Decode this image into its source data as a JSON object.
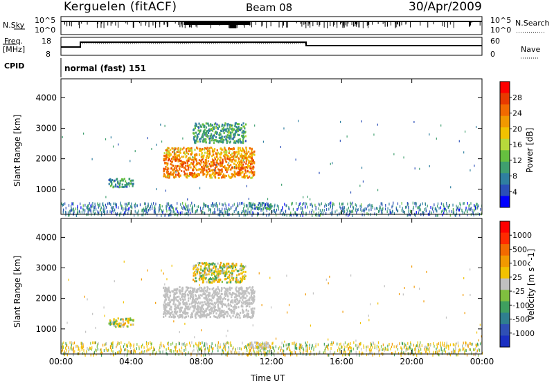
{
  "header": {
    "radar": "Kerguelen (fitACF)",
    "beam": "Beam 08",
    "date": "30/Apr/2009"
  },
  "top_panels": {
    "nsky_label": "N.Sky",
    "nsky_ticks": [
      "10^5",
      "10^0"
    ],
    "nsky_right_ticks": [
      "10^5",
      "10^0"
    ],
    "nsearch_label": "N.Search",
    "freq_label_1": "Freq.",
    "freq_label_2": "[MHz]",
    "freq_ticks": [
      "18",
      "8"
    ],
    "nave_label": "Nave",
    "nave_ticks": [
      "60",
      "0"
    ],
    "cpid_label": "CPID",
    "cpid_text": "normal (fast) 151"
  },
  "colors": {
    "scale_power": [
      "#0000ff",
      "#2b4fb8",
      "#2f7fa0",
      "#3f9f6f",
      "#66bf3f",
      "#b7d93b",
      "#f2c200",
      "#f29900",
      "#f26a00",
      "#e83a00",
      "#ff0000"
    ],
    "scale_velocity": [
      "#1a2fc2",
      "#2f4fb5",
      "#2f7f8f",
      "#3f9f5f",
      "#7fbf3f",
      "#c0c0c0",
      "#f2c200",
      "#f29900",
      "#f26a00",
      "#ff2a00",
      "#ff0000"
    ],
    "ground_scatter": "#c0c0c0"
  },
  "chart_data": [
    {
      "type": "heatmap",
      "title": "",
      "xlabel": "",
      "ylabel": "Slant Range [km]",
      "xlim": [
        "00:00",
        "24:00"
      ],
      "ylim": [
        180,
        4620
      ],
      "x_ticks": [
        "00:00",
        "04:00",
        "08:00",
        "12:00",
        "16:00",
        "20:00",
        "00:00"
      ],
      "y_ticks": [
        "1000",
        "2000",
        "3000",
        "4000"
      ],
      "colorbar": {
        "label": "Power [dB]",
        "ticks": [
          "28",
          "24",
          "20",
          "16",
          "12",
          "8",
          "4"
        ],
        "range": [
          0,
          30
        ]
      },
      "echo_regions": [
        {
          "t_start": 2.7,
          "t_end": 4.1,
          "r_start": 1100,
          "r_end": 1380,
          "level_db": 8
        },
        {
          "t_start": 5.8,
          "t_end": 11.0,
          "r_start": 1400,
          "r_end": 2400,
          "level_db": 20
        },
        {
          "t_start": 7.5,
          "t_end": 10.5,
          "r_start": 2550,
          "r_end": 3200,
          "level_db": 9
        },
        {
          "t_start": 10.7,
          "t_end": 12.0,
          "r_start": 380,
          "r_end": 600,
          "level_db": 8
        },
        {
          "t_start": 0.0,
          "t_end": 24.0,
          "r_start": 180,
          "r_end": 600,
          "level_db": 6
        }
      ]
    },
    {
      "type": "heatmap",
      "title": "",
      "xlabel": "Time UT",
      "ylabel": "Slant Range [km]",
      "xlim": [
        "00:00",
        "24:00"
      ],
      "ylim": [
        180,
        4620
      ],
      "x_ticks": [
        "00:00",
        "04:00",
        "08:00",
        "12:00",
        "16:00",
        "20:00",
        "00:00"
      ],
      "y_ticks": [
        "1000",
        "2000",
        "3000",
        "4000"
      ],
      "colorbar": {
        "label": "Velocity [m s^-1]",
        "ticks": [
          "1000",
          "500",
          "100",
          "25",
          "-25",
          "-100",
          "-500",
          "-1000"
        ],
        "range": [
          -1000,
          1000
        ]
      },
      "echo_regions": [
        {
          "t_start": 2.7,
          "t_end": 4.1,
          "r_start": 1100,
          "r_end": 1380,
          "velocity": -150
        },
        {
          "t_start": 5.8,
          "t_end": 11.0,
          "r_start": 1400,
          "r_end": 2400,
          "velocity": 0,
          "ground_scatter": true
        },
        {
          "t_start": 7.5,
          "t_end": 10.5,
          "r_start": 2550,
          "r_end": 3200,
          "velocity": -100
        },
        {
          "t_start": 10.7,
          "t_end": 12.0,
          "r_start": 380,
          "r_end": 600,
          "velocity": 0,
          "ground_scatter": true
        },
        {
          "t_start": 0.0,
          "t_end": 24.0,
          "r_start": 180,
          "r_end": 600,
          "velocity": -50
        }
      ]
    }
  ]
}
